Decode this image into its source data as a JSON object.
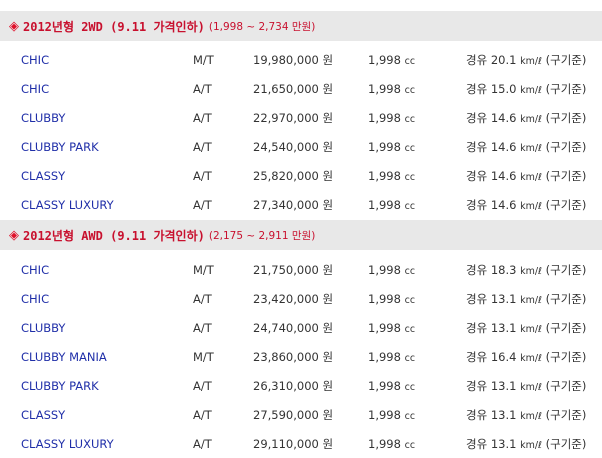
{
  "sections": [
    {
      "diamond": "◈",
      "title": "2012년형 2WD (9.11 가격인하)",
      "range": "(1,998 ~ 2,734 만원)",
      "rows": [
        {
          "model": "CHIC",
          "trans": "M/T",
          "price": "19,980,000 원",
          "cc": "1,998",
          "cc_unit": "cc",
          "fuel_prefix": "경유 20.1",
          "fuel_unit": "km/ℓ",
          "fuel_suffix": "(구기준)"
        },
        {
          "model": "CHIC",
          "trans": "A/T",
          "price": "21,650,000 원",
          "cc": "1,998",
          "cc_unit": "cc",
          "fuel_prefix": "경유 15.0",
          "fuel_unit": "km/ℓ",
          "fuel_suffix": "(구기준)"
        },
        {
          "model": "CLUBBY",
          "trans": "A/T",
          "price": "22,970,000 원",
          "cc": "1,998",
          "cc_unit": "cc",
          "fuel_prefix": "경유 14.6",
          "fuel_unit": "km/ℓ",
          "fuel_suffix": "(구기준)"
        },
        {
          "model": "CLUBBY PARK",
          "trans": "A/T",
          "price": "24,540,000 원",
          "cc": "1,998",
          "cc_unit": "cc",
          "fuel_prefix": "경유 14.6",
          "fuel_unit": "km/ℓ",
          "fuel_suffix": "(구기준)"
        },
        {
          "model": "CLASSY",
          "trans": "A/T",
          "price": "25,820,000 원",
          "cc": "1,998",
          "cc_unit": "cc",
          "fuel_prefix": "경유 14.6",
          "fuel_unit": "km/ℓ",
          "fuel_suffix": "(구기준)"
        },
        {
          "model": "CLASSY LUXURY",
          "trans": "A/T",
          "price": "27,340,000 원",
          "cc": "1,998",
          "cc_unit": "cc",
          "fuel_prefix": "경유 14.6",
          "fuel_unit": "km/ℓ",
          "fuel_suffix": "(구기준)"
        }
      ]
    },
    {
      "diamond": "◈",
      "title": "2012년형 AWD (9.11 가격인하)",
      "range": "(2,175 ~ 2,911 만원)",
      "rows": [
        {
          "model": "CHIC",
          "trans": "M/T",
          "price": "21,750,000 원",
          "cc": "1,998",
          "cc_unit": "cc",
          "fuel_prefix": "경유 18.3",
          "fuel_unit": "km/ℓ",
          "fuel_suffix": "(구기준)"
        },
        {
          "model": "CHIC",
          "trans": "A/T",
          "price": "23,420,000 원",
          "cc": "1,998",
          "cc_unit": "cc",
          "fuel_prefix": "경유 13.1",
          "fuel_unit": "km/ℓ",
          "fuel_suffix": "(구기준)"
        },
        {
          "model": "CLUBBY",
          "trans": "A/T",
          "price": "24,740,000 원",
          "cc": "1,998",
          "cc_unit": "cc",
          "fuel_prefix": "경유 13.1",
          "fuel_unit": "km/ℓ",
          "fuel_suffix": "(구기준)"
        },
        {
          "model": "CLUBBY MANIA",
          "trans": "M/T",
          "price": "23,860,000 원",
          "cc": "1,998",
          "cc_unit": "cc",
          "fuel_prefix": "경유 16.4",
          "fuel_unit": "km/ℓ",
          "fuel_suffix": "(구기준)"
        },
        {
          "model": "CLUBBY PARK",
          "trans": "A/T",
          "price": "26,310,000 원",
          "cc": "1,998",
          "cc_unit": "cc",
          "fuel_prefix": "경유 13.1",
          "fuel_unit": "km/ℓ",
          "fuel_suffix": "(구기준)"
        },
        {
          "model": "CLASSY",
          "trans": "A/T",
          "price": "27,590,000 원",
          "cc": "1,998",
          "cc_unit": "cc",
          "fuel_prefix": "경유 13.1",
          "fuel_unit": "km/ℓ",
          "fuel_suffix": "(구기준)"
        },
        {
          "model": "CLASSY LUXURY",
          "trans": "A/T",
          "price": "29,110,000 원",
          "cc": "1,998",
          "cc_unit": "cc",
          "fuel_prefix": "경유 13.1",
          "fuel_unit": "km/ℓ",
          "fuel_suffix": "(구기준)"
        }
      ]
    }
  ],
  "colors": {
    "header_bg": "#e8e8e8",
    "header_text": "#c8102e",
    "model_link": "#1f2ea8",
    "body_text": "#333333"
  }
}
